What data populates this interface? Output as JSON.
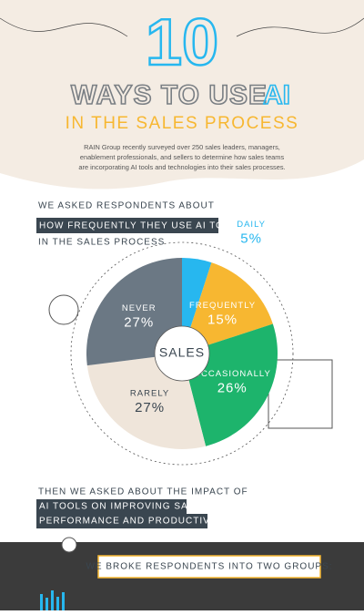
{
  "header": {
    "number": "10",
    "title": "WAYS TO USE",
    "title_highlight": "AI",
    "subtitle": "IN THE SALES PROCESS",
    "intro": [
      "RAIN Group recently surveyed over 250 sales leaders, managers,",
      "enablement professionals, and sellers to determine how sales teams",
      "are incorporating AI tools and technologies into their sales processes."
    ]
  },
  "question": {
    "lead": "WE ASKED RESPONDENTS ABOUT",
    "highlight": "HOW FREQUENTLY THEY USE AI TOOLS",
    "tail": "IN THE SALES PROCESS"
  },
  "chart_data": {
    "type": "pie",
    "center_label": "SALES",
    "categories": [
      "DAILY",
      "FREQUENTLY",
      "OCCASIONALLY",
      "RARELY",
      "NEVER"
    ],
    "values": [
      5,
      15,
      26,
      27,
      27
    ],
    "value_labels": [
      "5%",
      "15%",
      "26%",
      "27%",
      "27%"
    ],
    "colors": [
      "#27b7ef",
      "#f7b731",
      "#1db46c",
      "#efe5da",
      "#6b7884"
    ]
  },
  "followup": {
    "lead": "THEN WE ASKED ABOUT THE IMPACT OF",
    "highlight": [
      "AI TOOLS ON IMPROVING SALES",
      "PERFORMANCE AND PRODUCTIVITY."
    ]
  },
  "footer": {
    "banner": "WE BROKE RESPONDENTS INTO TWO GROUPS:"
  }
}
